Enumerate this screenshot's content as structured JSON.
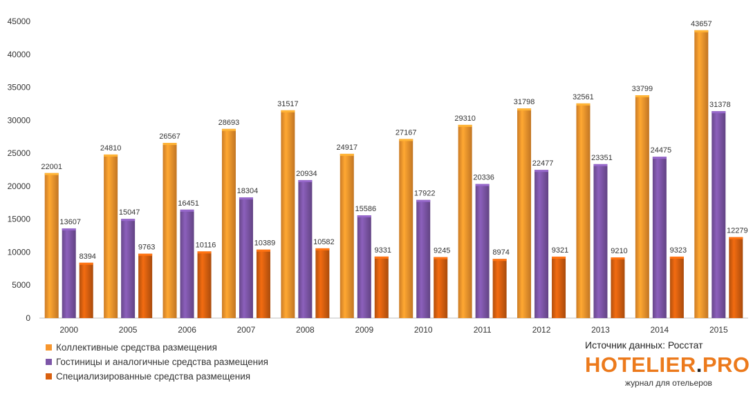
{
  "chart_data": {
    "type": "bar",
    "title": "",
    "xlabel": "",
    "ylabel": "",
    "ylim": [
      0,
      45000
    ],
    "yticks": [
      0,
      5000,
      10000,
      15000,
      20000,
      25000,
      30000,
      35000,
      40000,
      45000
    ],
    "categories": [
      "2000",
      "2005",
      "2006",
      "2007",
      "2008",
      "2009",
      "2010",
      "2011",
      "2012",
      "2013",
      "2014",
      "2015"
    ],
    "series": [
      {
        "name": "Коллективные средства размещения",
        "color": "#f7962d",
        "values": [
          22001,
          24810,
          26567,
          28693,
          31517,
          24917,
          27167,
          29310,
          31798,
          32561,
          33799,
          43657
        ]
      },
      {
        "name": "Гостиницы и аналогичные средства размещения",
        "color": "#7d56a8",
        "values": [
          13607,
          15047,
          16451,
          18304,
          20934,
          15586,
          17922,
          20336,
          22477,
          23351,
          24475,
          31378
        ]
      },
      {
        "name": "Специализированные средства размещения",
        "color": "#d9600f",
        "values": [
          8394,
          9763,
          10116,
          10389,
          10582,
          9331,
          9245,
          8974,
          9321,
          9210,
          9323,
          12279
        ]
      }
    ],
    "legend_position": "bottom-left",
    "grid": false
  },
  "source_label": "Источник данных: Росстат",
  "brand": {
    "name": "HOTELIER",
    "dot": ".",
    "suffix": "PRO",
    "tagline": "журнал для отельеров"
  }
}
